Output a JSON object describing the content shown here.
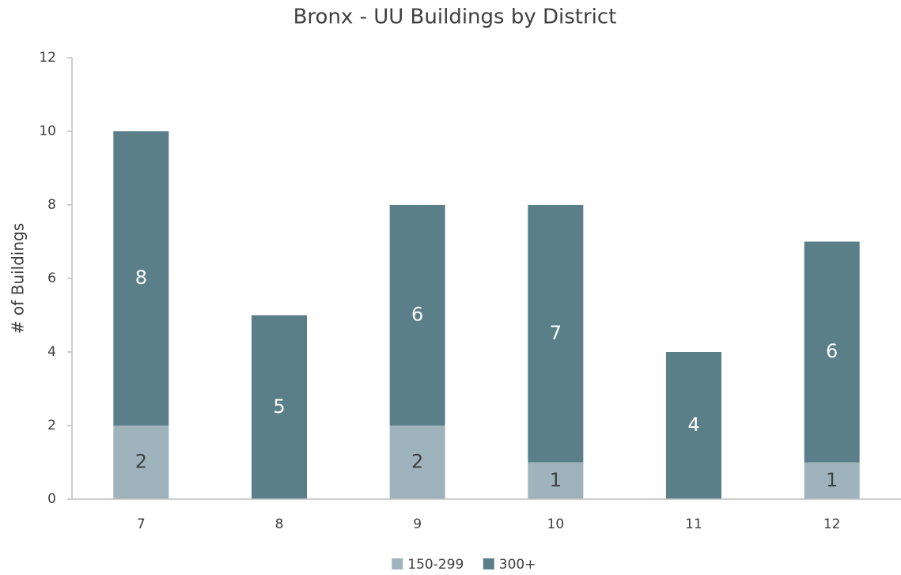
{
  "chart_data": {
    "type": "stacked_bar",
    "title": "Bronx - UU Buildings by District",
    "y_label": "# of Buildings",
    "categories": [
      "7",
      "8",
      "9",
      "10",
      "11",
      "12"
    ],
    "series": [
      {
        "name": "150-299",
        "color": "#9eb3bb",
        "values": [
          2,
          0,
          2,
          1,
          0,
          1
        ]
      },
      {
        "name": "300+",
        "color": "#5b7f89",
        "values": [
          8,
          5,
          6,
          7,
          4,
          6
        ]
      }
    ],
    "ylim": [
      0,
      12
    ],
    "yticks": [
      0,
      2,
      4,
      6,
      8,
      10,
      12
    ],
    "grid": false,
    "legend": "bottom"
  }
}
